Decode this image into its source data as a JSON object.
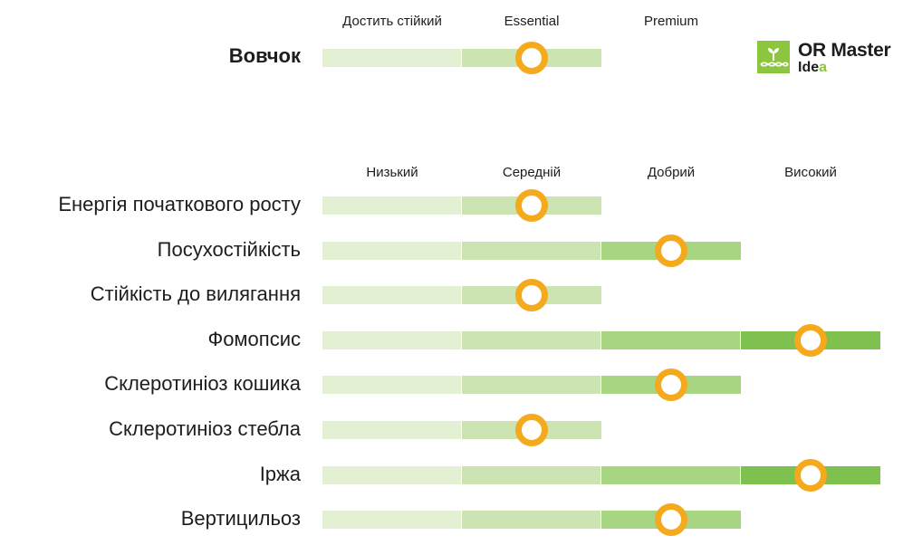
{
  "colors": {
    "level1": "#e3f0d4",
    "level2": "#cbe4b2",
    "level3": "#a8d582",
    "level4": "#7fc14e",
    "marker": "#f5a91c"
  },
  "logo": {
    "icon": "sprout-dna-icon",
    "line1": "OR Master",
    "line2_a": "Ide",
    "line2_b": "a"
  },
  "variety": {
    "scale_labels": [
      "Достить стійкий",
      "Essential",
      "Premium"
    ],
    "rating": {
      "label": "Вовчок",
      "max_level": 2,
      "level": 2,
      "scale_levels": 3
    }
  },
  "traits": {
    "scale_labels": [
      "Низький",
      "Середній",
      "Добрий",
      "Високий"
    ],
    "rows": [
      {
        "label": "Енергія початкового росту",
        "max_level": 2,
        "level": 2
      },
      {
        "label": "Посухостійкість",
        "max_level": 3,
        "level": 3
      },
      {
        "label": "Стійкість до вилягання",
        "max_level": 2,
        "level": 2
      },
      {
        "label": "Фомопсис",
        "max_level": 4,
        "level": 4
      },
      {
        "label": "Склеротиніоз кошика",
        "max_level": 3,
        "level": 3
      },
      {
        "label": "Склеротиніоз стебла",
        "max_level": 2,
        "level": 2
      },
      {
        "label": "Іржа",
        "max_level": 4,
        "level": 4
      },
      {
        "label": "Вертицильоз",
        "max_level": 3,
        "level": 3
      }
    ]
  }
}
